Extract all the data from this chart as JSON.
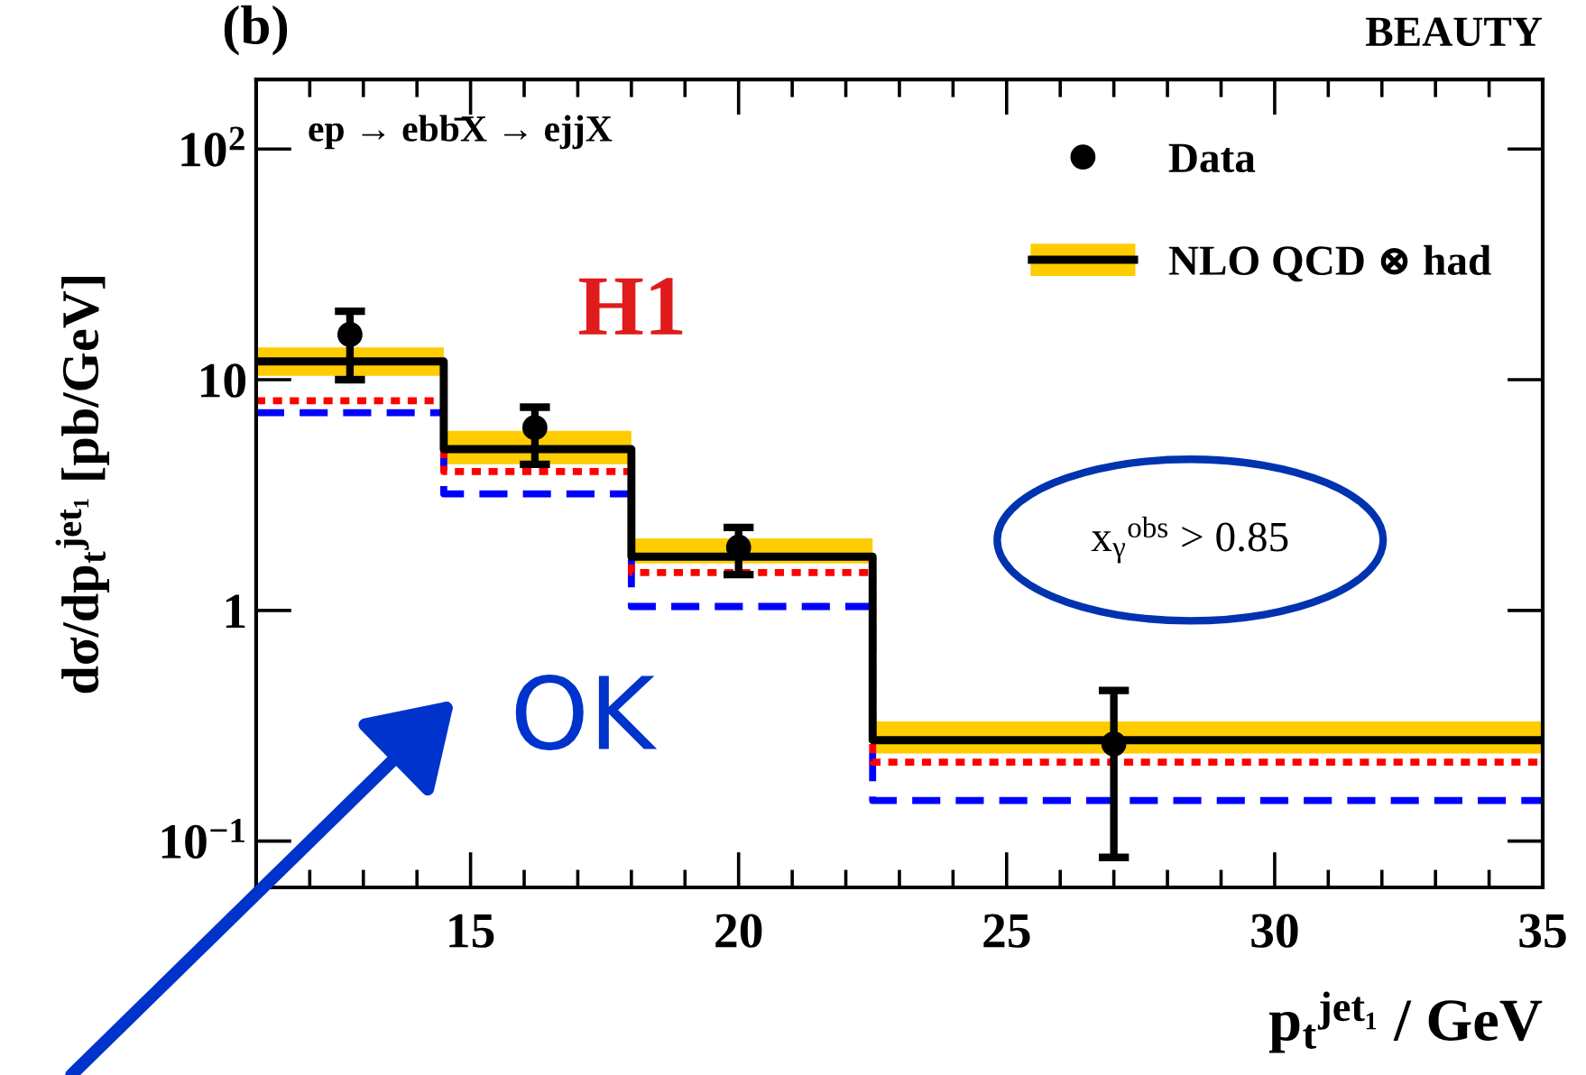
{
  "chart_data": {
    "type": "step",
    "title": "(b)",
    "subtitle": "BEAUTY",
    "xlabel": "p$_{t}$$^{jet₁}$ / GeV",
    "ylabel": "dσ/dp$_{t}$$^{jet₁}$ [pb/GeV]",
    "log": "y",
    "grid": false,
    "legend": "top right",
    "xlim": [
      11,
      35
    ],
    "xticks": [
      15,
      20,
      25,
      30,
      35
    ],
    "ylim": [
      0.063,
      200
    ],
    "yticks": [
      {
        "value": 0.1,
        "label": "10$^{−1}$"
      },
      1,
      10,
      {
        "value": 100,
        "label": "10$^{2}$"
      }
    ],
    "series": [
      {
        "name": "Data",
        "type": "scatter",
        "marker": "circle",
        "color": "#000000",
        "x": [
          12.75,
          16.2,
          20.0,
          27.0
        ],
        "values": [
          15.7,
          6.2,
          1.88,
          0.264
        ],
        "errors": [
          [
            10.0,
            19.8
          ],
          [
            4.3,
            7.6
          ],
          [
            1.43,
            2.29
          ],
          [
            0.085,
            0.45
          ]
        ]
      },
      {
        "line_style": "dashed",
        "color": "#0000ff",
        "x": [
          11,
          14.5,
          18,
          22.5,
          35
        ],
        "values": [
          7.2,
          3.2,
          1.04,
          0.15,
          0.15
        ]
      },
      {
        "line_style": "dotted",
        "color": "#ff0000",
        "x": [
          11,
          14.5,
          18,
          22.5,
          35
        ],
        "values": [
          8.1,
          4.0,
          1.46,
          0.22,
          0.22
        ]
      },
      {
        "name": "NLO QCD ⊗ had",
        "line_style": "solid",
        "color": "#000000",
        "x": [
          11,
          14.5,
          18,
          22.5,
          35
        ],
        "values": [
          12.0,
          5.0,
          1.71,
          0.274,
          0.274
        ],
        "lower": [
          10.4,
          4.3,
          1.6,
          0.24,
          0.24
        ],
        "upper": [
          13.8,
          6.0,
          2.05,
          0.33,
          0.33
        ]
      }
    ],
    "annotations": [
      "ep → ebb̄X → ejjX",
      "H1",
      "x$_{γ}$$^{obs}$ > 0.85",
      "OK"
    ]
  }
}
